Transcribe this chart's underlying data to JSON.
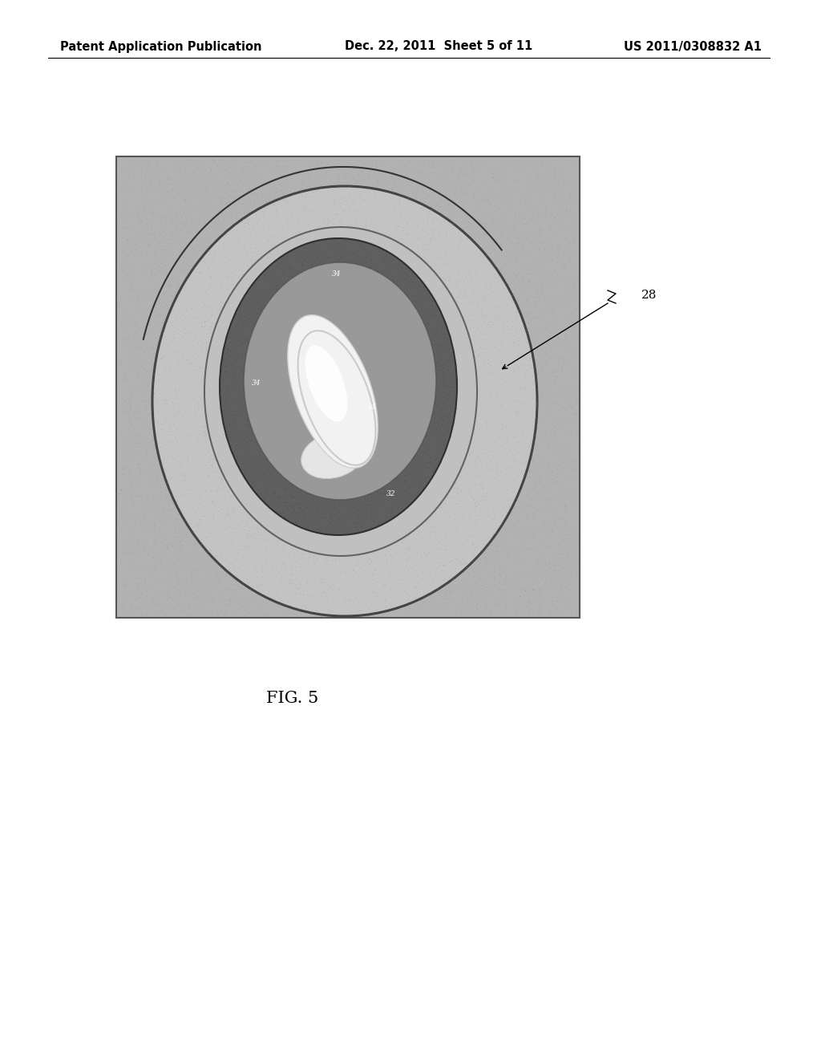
{
  "page_width": 10.24,
  "page_height": 13.2,
  "background_color": "#ffffff",
  "header_text_left": "Patent Application Publication",
  "header_text_mid": "Dec. 22, 2011  Sheet 5 of 11",
  "header_text_right": "US 2011/0308832 A1",
  "header_fontsize": 10.5,
  "fig_caption": "FIG. 5",
  "fig_caption_fontsize": 15,
  "label_28": "28",
  "label_fontsize": 11
}
